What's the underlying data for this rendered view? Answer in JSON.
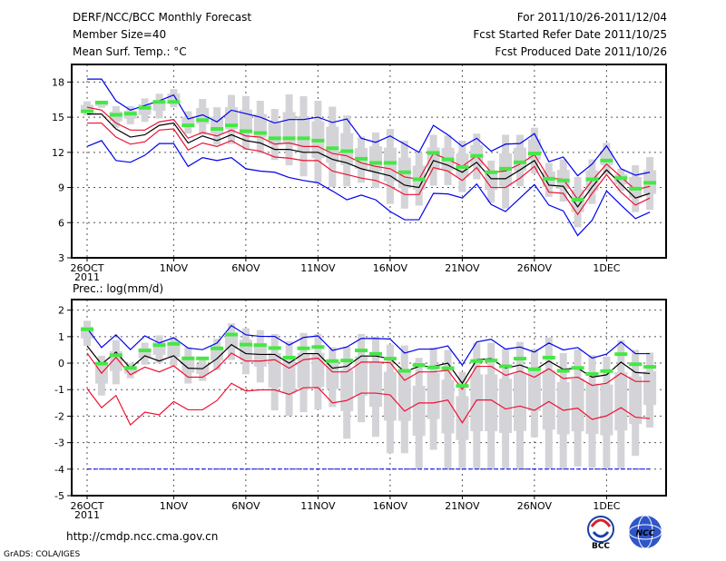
{
  "header": {
    "title": "DERF/NCC/BCC Monthly Forecast",
    "member_size": "Member Size=40",
    "variable": "Mean Surf. Temp.: °C",
    "period": "For 2011/10/26-2011/12/04",
    "started": "Fcst Started Refer Date 2011/10/25",
    "produced": "Fcst Produced Date 2011/10/26"
  },
  "footer": {
    "url": "http://cmdp.ncc.cma.gov.cn",
    "credit": "GrADS: COLA/IGES",
    "logo_bcc": "BCC",
    "logo_ncc": "NCC"
  },
  "colors": {
    "obs": "#44e844",
    "range": "#d4d4d8",
    "mean": "#000000",
    "inner": "#ee1133",
    "outer": "#0000ee"
  },
  "chart_data": [
    {
      "type": "line",
      "title": "Mean Surf. Temp.: °C",
      "days": 40,
      "x_ticks": [
        {
          "day": 0,
          "label": "26OCT",
          "sub": "2011"
        },
        {
          "day": 6,
          "label": "1NOV"
        },
        {
          "day": 11,
          "label": "6NOV"
        },
        {
          "day": 16,
          "label": "11NOV"
        },
        {
          "day": 21,
          "label": "16NOV"
        },
        {
          "day": 26,
          "label": "21NOV"
        },
        {
          "day": 31,
          "label": "26NOV"
        },
        {
          "day": 36,
          "label": "1DEC"
        }
      ],
      "ylim": [
        3,
        19.5
      ],
      "y_ticks": [
        "3",
        "6",
        "9",
        "12",
        "15",
        "18"
      ],
      "grid": true,
      "series": [
        {
          "name": "upper-outer",
          "color": "outer",
          "values": [
            18.25,
            18.25,
            16.4,
            15.6,
            16.0,
            16.4,
            16.9,
            14.85,
            15.2,
            14.6,
            15.6,
            15.3,
            15.0,
            14.5,
            14.8,
            14.8,
            15.0,
            14.55,
            14.85,
            13.2,
            12.85,
            13.4,
            12.7,
            12.0,
            14.3,
            13.5,
            12.5,
            13.2,
            12.1,
            12.7,
            12.75,
            13.6,
            11.2,
            11.6,
            10.0,
            11.0,
            12.55,
            10.6,
            10.05,
            10.3
          ]
        },
        {
          "name": "upper-inner",
          "color": "inner",
          "values": [
            15.85,
            15.6,
            14.5,
            13.9,
            13.9,
            14.6,
            14.8,
            13.2,
            13.7,
            13.4,
            13.9,
            13.4,
            13.3,
            12.7,
            12.8,
            12.5,
            12.5,
            11.9,
            11.7,
            11.1,
            10.8,
            10.6,
            9.9,
            9.7,
            11.9,
            11.4,
            10.8,
            11.7,
            10.3,
            10.4,
            11.0,
            11.8,
            9.8,
            9.7,
            8.0,
            9.6,
            11.0,
            9.9,
            8.8,
            9.1
          ]
        },
        {
          "name": "mean",
          "color": "mean",
          "values": [
            15.27,
            15.27,
            14.0,
            13.3,
            13.5,
            14.3,
            14.5,
            12.8,
            13.4,
            13.0,
            13.5,
            13.0,
            12.8,
            12.25,
            12.25,
            12.0,
            12.0,
            11.4,
            11.1,
            10.6,
            10.3,
            10.0,
            9.2,
            9.0,
            11.3,
            10.9,
            10.3,
            11.15,
            9.75,
            9.75,
            10.5,
            11.3,
            9.2,
            9.1,
            7.35,
            9.05,
            10.5,
            9.3,
            8.1,
            8.5
          ]
        },
        {
          "name": "lower-inner",
          "color": "inner",
          "values": [
            14.5,
            14.5,
            13.3,
            12.7,
            12.9,
            13.9,
            14.0,
            12.2,
            12.8,
            12.5,
            13.0,
            12.3,
            12.1,
            11.6,
            11.5,
            11.3,
            11.3,
            10.4,
            10.1,
            9.8,
            9.6,
            9.1,
            8.4,
            8.4,
            10.7,
            10.4,
            9.6,
            10.7,
            9.0,
            9.0,
            9.8,
            10.8,
            8.6,
            8.5,
            6.7,
            8.5,
            10.1,
            8.6,
            7.5,
            8.1
          ]
        },
        {
          "name": "lower-outer",
          "color": "outer",
          "values": [
            12.5,
            13.0,
            11.3,
            11.15,
            11.75,
            12.75,
            12.75,
            10.8,
            11.55,
            11.3,
            11.55,
            10.6,
            10.4,
            10.3,
            9.85,
            9.6,
            9.4,
            8.7,
            7.95,
            8.35,
            7.95,
            6.95,
            6.25,
            6.25,
            8.5,
            8.45,
            8.1,
            9.3,
            7.55,
            6.95,
            8.1,
            9.25,
            7.5,
            7.0,
            4.9,
            6.2,
            8.7,
            7.5,
            6.35,
            6.9
          ]
        }
      ],
      "range": [
        [
          16.35,
          15.15
        ],
        [
          16.35,
          15.8
        ],
        [
          15.95,
          14.1
        ],
        [
          15.95,
          14.4
        ],
        [
          16.6,
          14.6
        ],
        [
          17.0,
          14.9
        ],
        [
          17.4,
          15.85
        ],
        [
          15.5,
          13.6
        ],
        [
          16.55,
          13.5
        ],
        [
          15.85,
          12.65
        ],
        [
          16.9,
          12.7
        ],
        [
          16.8,
          12.2
        ],
        [
          16.4,
          11.9
        ],
        [
          15.7,
          11.35
        ],
        [
          16.95,
          10.9
        ],
        [
          16.8,
          9.95
        ],
        [
          16.4,
          9.4
        ],
        [
          15.9,
          9.05
        ],
        [
          15.15,
          9.1
        ],
        [
          13.35,
          9.4
        ],
        [
          13.7,
          8.95
        ],
        [
          14.0,
          7.6
        ],
        [
          13.0,
          7.2
        ],
        [
          12.0,
          7.45
        ],
        [
          13.5,
          9.15
        ],
        [
          13.45,
          9.2
        ],
        [
          13.0,
          8.6
        ],
        [
          13.6,
          9.7
        ],
        [
          11.3,
          7.7
        ],
        [
          13.5,
          7.2
        ],
        [
          13.5,
          9.1
        ],
        [
          14.1,
          10.2
        ],
        [
          11.1,
          8.2
        ],
        [
          11.4,
          7.8
        ],
        [
          9.9,
          5.6
        ],
        [
          11.4,
          7.6
        ],
        [
          12.8,
          10.1
        ],
        [
          10.6,
          8.7
        ],
        [
          10.9,
          6.9
        ],
        [
          11.6,
          7.1
        ]
      ],
      "observed": [
        15.5,
        16.25,
        15.2,
        15.3,
        15.8,
        16.3,
        16.3,
        14.3,
        14.75,
        14.0,
        14.3,
        13.8,
        13.65,
        13.2,
        13.2,
        13.2,
        13.0,
        12.35,
        12.1,
        11.45,
        11.1,
        11.1,
        10.3,
        9.7,
        11.95,
        11.4,
        10.75,
        11.7,
        10.3,
        10.6,
        11.15,
        11.9,
        9.75,
        9.6,
        7.95,
        9.7,
        11.3,
        9.8,
        8.9,
        9.4
      ]
    },
    {
      "type": "line",
      "title": "Prec.: log(mm/d)",
      "days": 40,
      "x_ticks": [
        {
          "day": 0,
          "label": "26OCT",
          "sub": "2011"
        },
        {
          "day": 6,
          "label": "1NOV"
        },
        {
          "day": 11,
          "label": "6NOV"
        },
        {
          "day": 16,
          "label": "11NOV"
        },
        {
          "day": 21,
          "label": "16NOV"
        },
        {
          "day": 26,
          "label": "21NOV"
        },
        {
          "day": 31,
          "label": "26NOV"
        },
        {
          "day": 36,
          "label": "1DEC"
        }
      ],
      "ylim": [
        -5,
        2.4
      ],
      "y_ticks": [
        "-5",
        "-4",
        "-3",
        "-2",
        "-1",
        "0",
        "1",
        "2"
      ],
      "grid": true,
      "floor": -4,
      "series": [
        {
          "name": "upper-outer",
          "color": "outer",
          "values": [
            1.31,
            0.59,
            1.07,
            0.51,
            1.03,
            0.76,
            0.96,
            0.57,
            0.51,
            0.76,
            1.42,
            1.07,
            1.01,
            1.01,
            0.68,
            0.97,
            1.03,
            0.48,
            0.61,
            0.93,
            0.93,
            0.91,
            0.38,
            0.53,
            0.53,
            0.65,
            -0.07,
            0.8,
            0.9,
            0.53,
            0.61,
            0.42,
            0.76,
            0.5,
            0.59,
            0.19,
            0.34,
            0.8,
            0.36,
            0.36
          ]
        },
        {
          "name": "mean",
          "color": "mean",
          "values": [
            0.65,
            -0.04,
            0.42,
            -0.19,
            0.28,
            0.08,
            0.28,
            -0.19,
            -0.21,
            0.17,
            0.7,
            0.36,
            0.33,
            0.33,
            0.0,
            0.36,
            0.36,
            -0.19,
            -0.12,
            0.27,
            0.27,
            0.17,
            -0.33,
            -0.12,
            -0.12,
            0.0,
            -0.76,
            0.13,
            0.17,
            -0.19,
            -0.07,
            -0.27,
            0.08,
            -0.23,
            -0.19,
            -0.53,
            -0.44,
            0.04,
            -0.35,
            -0.39
          ]
        },
        {
          "name": "upper-inner",
          "color": "inner",
          "values": [
            0.38,
            -0.38,
            0.22,
            -0.44,
            -0.15,
            -0.33,
            -0.1,
            -0.53,
            -0.53,
            -0.19,
            0.38,
            0.08,
            0.08,
            0.13,
            -0.19,
            0.13,
            0.19,
            -0.33,
            -0.33,
            0.04,
            0.04,
            0.02,
            -0.65,
            -0.33,
            -0.33,
            -0.27,
            -0.99,
            -0.12,
            -0.12,
            -0.46,
            -0.3,
            -0.53,
            -0.21,
            -0.58,
            -0.53,
            -0.84,
            -0.76,
            -0.38,
            -0.69,
            -0.69
          ]
        },
        {
          "name": "lower-inner",
          "color": "inner",
          "values": [
            -0.96,
            -1.68,
            -1.22,
            -2.33,
            -1.85,
            -1.95,
            -1.45,
            -1.76,
            -1.76,
            -1.41,
            -0.76,
            -1.05,
            -1.01,
            -1.01,
            -1.18,
            -0.93,
            -0.92,
            -1.5,
            -1.41,
            -1.13,
            -1.13,
            -1.2,
            -1.81,
            -1.5,
            -1.5,
            -1.39,
            -2.25,
            -1.39,
            -1.39,
            -1.73,
            -1.62,
            -1.78,
            -1.45,
            -1.78,
            -1.7,
            -2.12,
            -1.99,
            -1.68,
            -2.04,
            -2.09
          ]
        }
      ],
      "range": [
        [
          1.6,
          0.65
        ],
        [
          0.28,
          -1.22
        ],
        [
          0.87,
          -0.8
        ],
        [
          0.0,
          -0.57
        ],
        [
          0.77,
          -0.06
        ],
        [
          1.05,
          0.0
        ],
        [
          1.0,
          -0.1
        ],
        [
          0.6,
          -0.77
        ],
        [
          0.2,
          -0.67
        ],
        [
          0.92,
          -0.26
        ],
        [
          1.5,
          0.12
        ],
        [
          1.32,
          -0.42
        ],
        [
          1.25,
          -0.73
        ],
        [
          1.1,
          -1.78
        ],
        [
          0.83,
          -1.99
        ],
        [
          1.14,
          -1.85
        ],
        [
          1.1,
          -1.75
        ],
        [
          0.6,
          -1.66
        ],
        [
          0.62,
          -2.85
        ],
        [
          1.1,
          -2.23
        ],
        [
          1.0,
          -2.78
        ],
        [
          0.7,
          -3.4
        ],
        [
          0.67,
          -3.4
        ],
        [
          0.2,
          -4.0
        ],
        [
          0.6,
          -3.27
        ],
        [
          0.5,
          -4.0
        ],
        [
          -0.33,
          -4.0
        ],
        [
          0.77,
          -4.0
        ],
        [
          0.77,
          -4.0
        ],
        [
          0.55,
          -4.0
        ],
        [
          0.8,
          -4.0
        ],
        [
          0.53,
          -2.8
        ],
        [
          0.97,
          -4.0
        ],
        [
          0.38,
          -4.0
        ],
        [
          0.53,
          -3.9
        ],
        [
          0.3,
          -3.95
        ],
        [
          0.25,
          -4.0
        ],
        [
          0.87,
          -4.0
        ],
        [
          0.5,
          -3.5
        ],
        [
          0.4,
          -2.43
        ]
      ],
      "observed": [
        1.28,
        -0.02,
        0.3,
        -0.18,
        0.48,
        0.68,
        0.73,
        0.18,
        0.18,
        0.56,
        1.08,
        0.7,
        0.68,
        0.57,
        0.21,
        0.56,
        0.61,
        0.08,
        0.1,
        0.48,
        0.35,
        0.17,
        -0.29,
        -0.07,
        -0.16,
        -0.19,
        -0.86,
        0.08,
        0.1,
        -0.12,
        0.17,
        -0.23,
        0.21,
        -0.29,
        -0.18,
        -0.41,
        -0.3,
        0.34,
        -0.04,
        -0.14
      ]
    }
  ]
}
